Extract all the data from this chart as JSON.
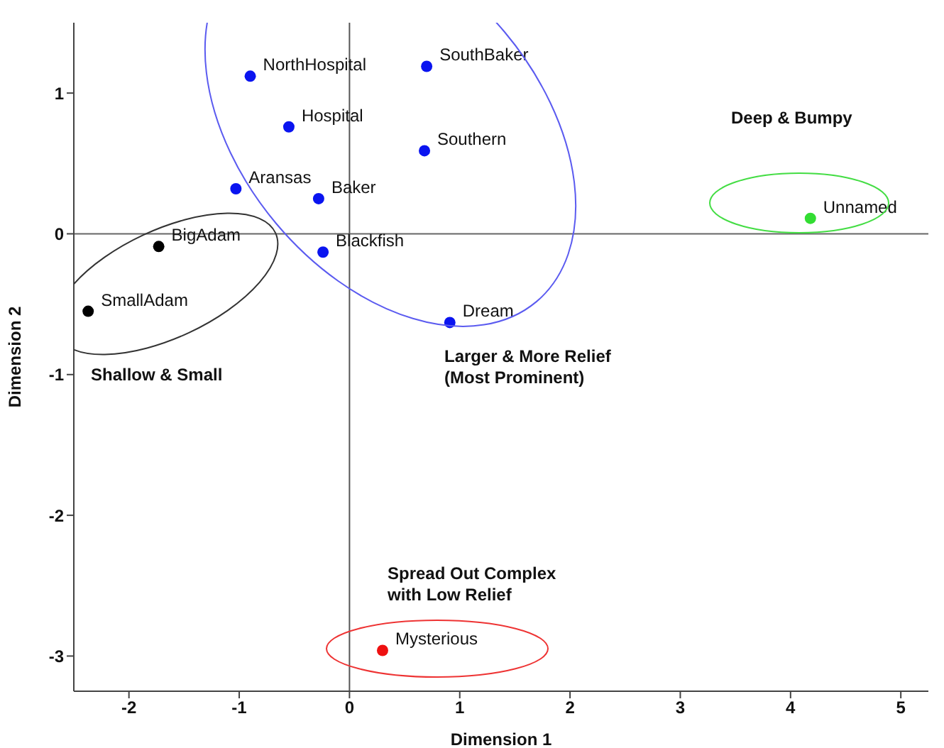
{
  "chart_data": {
    "type": "scatter",
    "xlabel": "Dimension 1",
    "ylabel": "Dimension 2",
    "x": [
      -0.9,
      0.7,
      -0.55,
      0.68,
      -1.03,
      -0.28,
      -0.24,
      0.91,
      -1.73,
      -2.37,
      4.18,
      0.3
    ],
    "values": [
      1.12,
      1.19,
      0.76,
      0.59,
      0.32,
      0.25,
      -0.13,
      -0.63,
      -0.09,
      -0.55,
      0.11,
      -2.96
    ],
    "colors": [
      "#0a14f0",
      "#0a14f0",
      "#0a14f0",
      "#0a14f0",
      "#0a14f0",
      "#0a14f0",
      "#0a14f0",
      "#0a14f0",
      "#000000",
      "#000000",
      "#33dd33",
      "#ee1111"
    ],
    "marker": "circle",
    "xlim": [
      -2.5,
      5.25
    ],
    "ylim": [
      -3.25,
      1.5
    ],
    "xticks": [
      -2,
      -1,
      0,
      1,
      2,
      3,
      4,
      5
    ],
    "yticks": [
      -3,
      -2,
      -1,
      0,
      1
    ],
    "ref_lines": [
      {
        "axis": "x",
        "value": 0,
        "color": "#555555"
      },
      {
        "axis": "y",
        "value": 0,
        "color": "#666666"
      }
    ],
    "annotations": [
      {
        "text": "NorthHospital",
        "x": -0.9,
        "y": 1.12
      },
      {
        "text": "SouthBaker",
        "x": 0.7,
        "y": 1.19
      },
      {
        "text": "Hospital",
        "x": -0.55,
        "y": 0.76
      },
      {
        "text": "Southern",
        "x": 0.68,
        "y": 0.59
      },
      {
        "text": "Aransas",
        "x": -1.03,
        "y": 0.32
      },
      {
        "text": "Baker",
        "x": -0.28,
        "y": 0.25
      },
      {
        "text": "Blackfish",
        "x": -0.24,
        "y": -0.13
      },
      {
        "text": "Dream",
        "x": 0.91,
        "y": -0.63
      },
      {
        "text": "BigAdam",
        "x": -1.73,
        "y": -0.09
      },
      {
        "text": "SmallAdam",
        "x": -2.37,
        "y": -0.55
      },
      {
        "text": "Unnamed",
        "x": 4.18,
        "y": 0.11
      },
      {
        "text": "Mysterious",
        "x": 0.3,
        "y": -2.96
      },
      "Shallow & Small",
      "Larger & More Relief\n(Most Prominent)",
      "Deep & Bumpy",
      "Spread Out Complex\nwith Low Relief"
    ]
  }
}
